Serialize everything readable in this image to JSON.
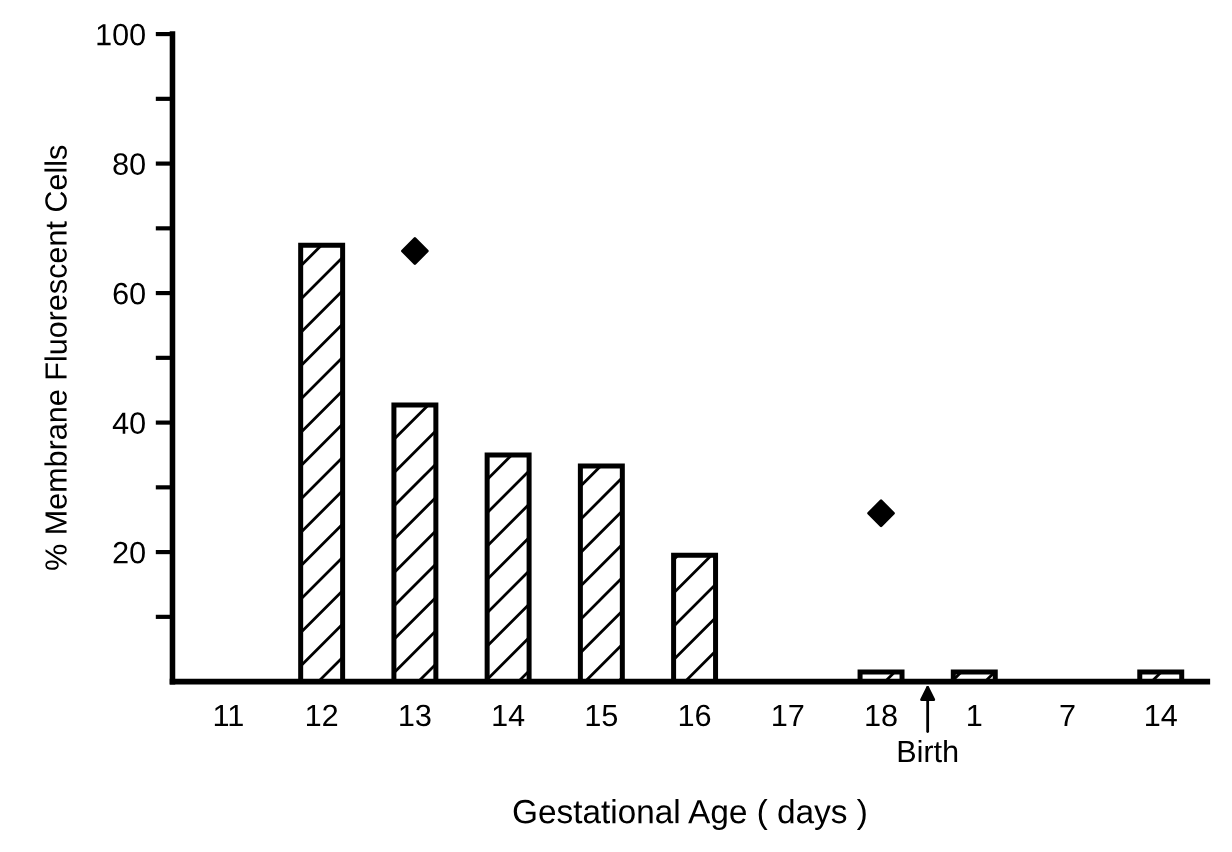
{
  "chart_data": {
    "type": "bar",
    "xlabel": "Gestational Age ( days )",
    "ylabel": "% Membrane Fluorescent Cells",
    "categories": [
      "11",
      "12",
      "13",
      "14",
      "15",
      "16",
      "17",
      "18",
      "1",
      "7",
      "14"
    ],
    "series": [
      {
        "color": "#000000",
        "values": [
          null,
          67.4,
          42.7,
          35,
          33.3,
          19.5,
          null,
          1.5,
          1.5,
          null,
          1.5
        ]
      },
      {
        "type": "scatter",
        "color": "#000000",
        "x": [
          "13",
          "18"
        ],
        "values": [
          66.5,
          26
        ],
        "marker": "diamond"
      }
    ],
    "annotations": [
      {
        "text": "Birth",
        "x": "18",
        "y": 0
      }
    ],
    "ylim": [
      0,
      100
    ],
    "yticks": [
      {
        "value": 10,
        "label": null
      },
      20,
      {
        "value": 30,
        "label": null
      },
      40,
      {
        "value": 50,
        "label": null
      },
      60,
      {
        "value": 70,
        "label": null
      },
      80,
      {
        "value": 90,
        "label": null
      },
      100
    ],
    "grid": false,
    "legend": false
  }
}
